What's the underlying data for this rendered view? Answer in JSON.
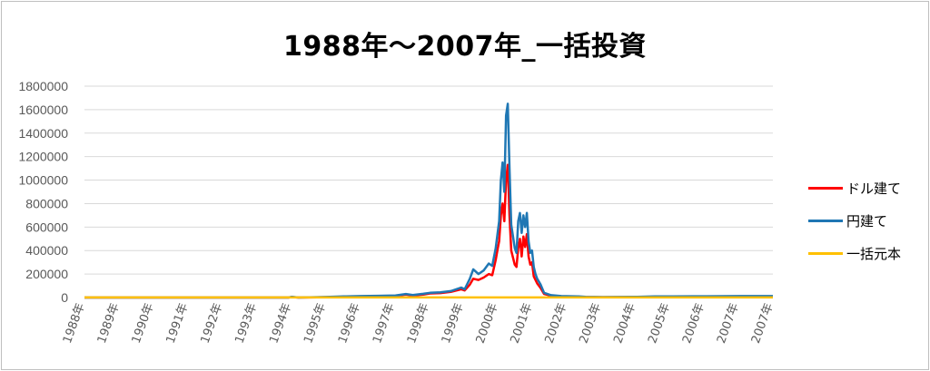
{
  "chart_data": {
    "type": "line",
    "title": "1988年～2007年_一括投資",
    "xlabel": "",
    "ylabel": "",
    "ylim": [
      0,
      1800000
    ],
    "yticks": [
      0,
      200000,
      400000,
      600000,
      800000,
      1000000,
      1200000,
      1400000,
      1600000,
      1800000
    ],
    "ytick_labels": [
      "0",
      "200000",
      "400000",
      "600000",
      "800000",
      "1000000",
      "1200000",
      "1400000",
      "1600000",
      "1800000"
    ],
    "xlim": [
      1988,
      2007.92
    ],
    "x_tick_labels": [
      "1988年",
      "1989年",
      "1990年",
      "1991年",
      "1992年",
      "1993年",
      "1994年",
      "1995年",
      "1996年",
      "1997年",
      "1998年",
      "1999年",
      "2000年",
      "2001年",
      "2002年",
      "2003年",
      "2004年",
      "2005年",
      "2006年",
      "2007年",
      "2007年"
    ],
    "grid": true,
    "legend_position": "right",
    "series": [
      {
        "name": "ドル建て",
        "color": "#ff0000",
        "x": [
          1988,
          1993.9,
          1994.0,
          1994.2,
          1995.0,
          1995.5,
          1996.0,
          1996.5,
          1997.0,
          1997.3,
          1997.5,
          1997.8,
          1998.0,
          1998.3,
          1998.6,
          1998.9,
          1999.0,
          1999.15,
          1999.25,
          1999.4,
          1999.55,
          1999.7,
          1999.8,
          1999.9,
          1999.96,
          2000.0,
          2000.05,
          2000.1,
          2000.15,
          2000.2,
          2000.25,
          2000.3,
          2000.35,
          2000.45,
          2000.5,
          2000.55,
          2000.6,
          2000.65,
          2000.7,
          2000.75,
          2000.8,
          2000.85,
          2000.9,
          2000.95,
          2001.0,
          2001.05,
          2001.1,
          2001.2,
          2001.3,
          2001.5,
          2001.8,
          2002.3,
          2002.5,
          2003.0,
          2004.0,
          2004.5,
          2005.0,
          2006.0,
          2007.0,
          2007.92
        ],
        "y": [
          0,
          0,
          4000,
          0,
          3000,
          6000,
          8000,
          12000,
          15000,
          25000,
          18000,
          25000,
          35000,
          38000,
          48000,
          70000,
          60000,
          110000,
          160000,
          150000,
          170000,
          200000,
          190000,
          320000,
          420000,
          480000,
          700000,
          800000,
          650000,
          1000000,
          1130000,
          700000,
          400000,
          280000,
          260000,
          420000,
          500000,
          350000,
          520000,
          430000,
          540000,
          350000,
          280000,
          300000,
          180000,
          150000,
          120000,
          80000,
          30000,
          15000,
          8000,
          5000,
          4000,
          3000,
          4000,
          6000,
          5000,
          6000,
          7000,
          7000
        ]
      },
      {
        "name": "円建て",
        "color": "#1f77b4",
        "x": [
          1988,
          1993.9,
          1994.0,
          1994.2,
          1995.0,
          1995.5,
          1996.0,
          1996.5,
          1997.0,
          1997.3,
          1997.5,
          1997.8,
          1998.0,
          1998.3,
          1998.6,
          1998.9,
          1999.0,
          1999.15,
          1999.25,
          1999.4,
          1999.55,
          1999.7,
          1999.8,
          1999.9,
          1999.96,
          2000.0,
          2000.05,
          2000.1,
          2000.15,
          2000.2,
          2000.25,
          2000.3,
          2000.35,
          2000.45,
          2000.5,
          2000.55,
          2000.6,
          2000.65,
          2000.7,
          2000.75,
          2000.8,
          2000.85,
          2000.9,
          2000.95,
          2001.0,
          2001.05,
          2001.1,
          2001.2,
          2001.3,
          2001.5,
          2001.8,
          2002.3,
          2002.5,
          2003.0,
          2004.0,
          2004.5,
          2005.0,
          2006.0,
          2007.0,
          2007.92
        ],
        "y": [
          0,
          0,
          6000,
          0,
          5000,
          9000,
          12000,
          15000,
          18000,
          30000,
          22000,
          32000,
          40000,
          45000,
          55000,
          85000,
          70000,
          160000,
          240000,
          200000,
          230000,
          290000,
          270000,
          420000,
          560000,
          650000,
          1000000,
          1150000,
          900000,
          1550000,
          1650000,
          1100000,
          620000,
          420000,
          380000,
          650000,
          720000,
          550000,
          700000,
          600000,
          720000,
          480000,
          380000,
          400000,
          260000,
          200000,
          160000,
          110000,
          40000,
          20000,
          12000,
          9000,
          6000,
          4000,
          6000,
          10000,
          9000,
          11000,
          12000,
          12000
        ]
      },
      {
        "name": "一括元本",
        "color": "#ffc000",
        "x": [
          1988,
          2007.92
        ],
        "y": [
          1000,
          1000
        ]
      }
    ]
  }
}
